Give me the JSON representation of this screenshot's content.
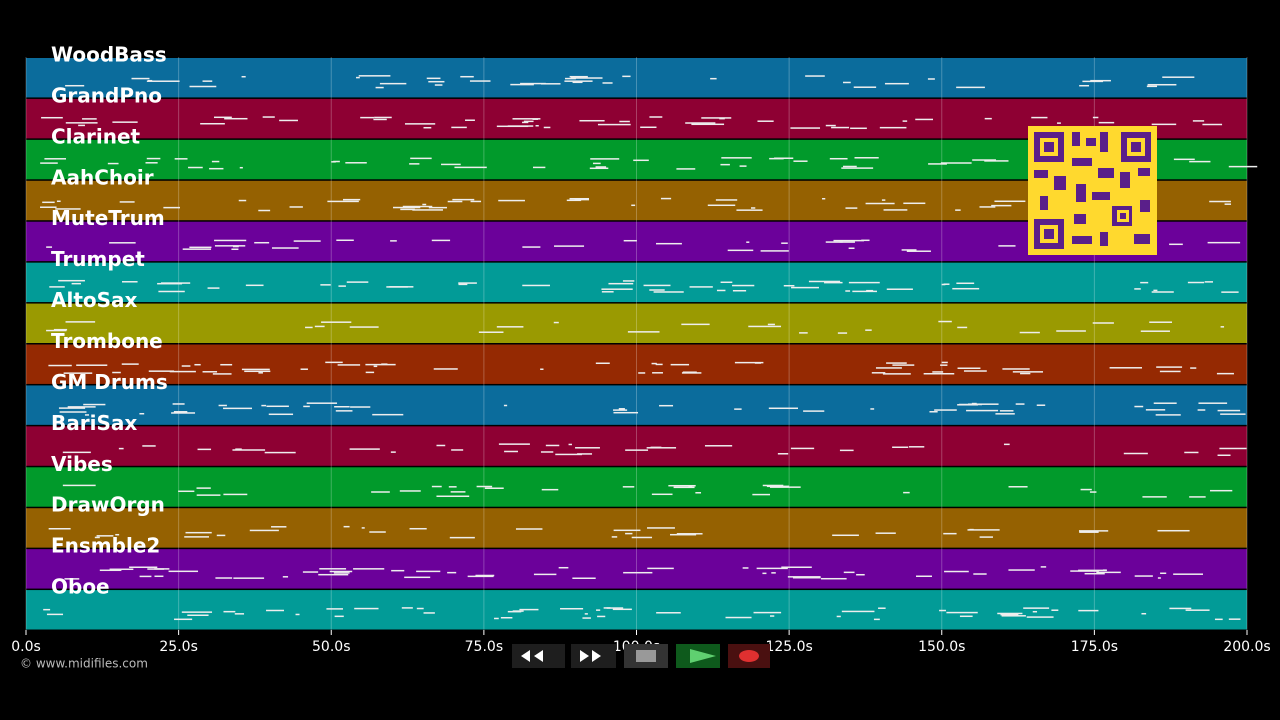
{
  "tracks": [
    {
      "name": "WoodBass",
      "color": "#0b6c9c"
    },
    {
      "name": "GrandPno",
      "color": "#8e0033"
    },
    {
      "name": "Clarinet",
      "color": "#019a2b"
    },
    {
      "name": "AahChoir",
      "color": "#956101"
    },
    {
      "name": "MuteTrum",
      "color": "#6b019a"
    },
    {
      "name": "Trumpet",
      "color": "#029b97"
    },
    {
      "name": "AltoSax",
      "color": "#9a9a01"
    },
    {
      "name": "Trombone",
      "color": "#952902"
    },
    {
      "name": "GM Drums",
      "color": "#0b6c9c"
    },
    {
      "name": "BariSax",
      "color": "#8e0033"
    },
    {
      "name": "Vibes",
      "color": "#019a2b"
    },
    {
      "name": "DrawOrgn",
      "color": "#956101"
    },
    {
      "name": "Ensmble2",
      "color": "#6b019a"
    },
    {
      "name": "Oboe",
      "color": "#029b97"
    }
  ],
  "time_axis": {
    "labels": [
      "0.0s",
      "25.0s",
      "50.0s",
      "75.0s",
      "100.0s",
      "125.0s",
      "150.0s",
      "175.0s",
      "200.0s"
    ]
  },
  "footer": {
    "credit": "© www.midifiles.com"
  }
}
